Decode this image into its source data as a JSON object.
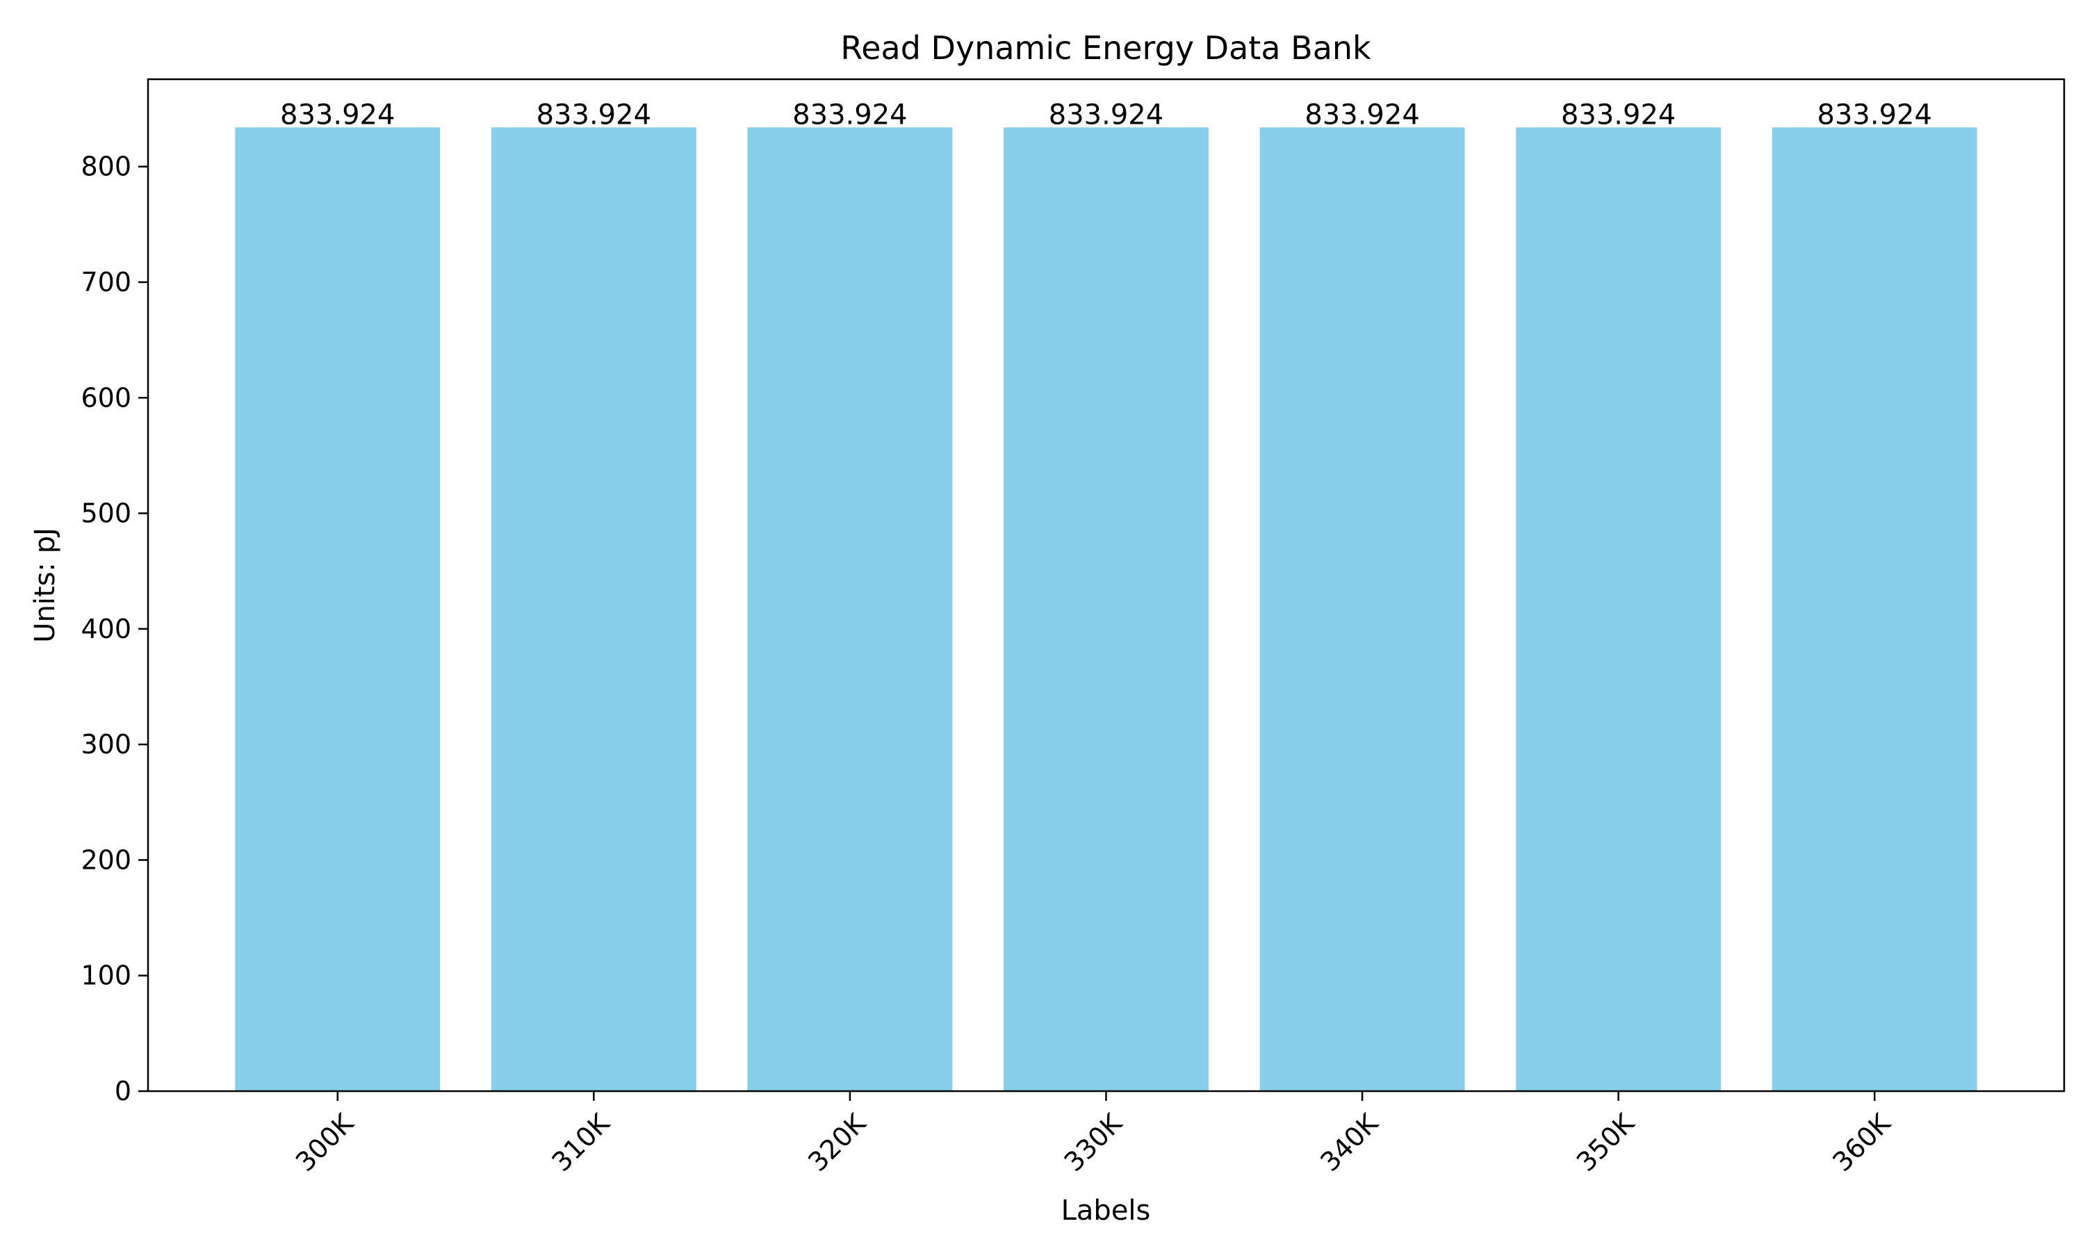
{
  "chart_data": {
    "type": "bar",
    "title": "Read Dynamic Energy Data Bank",
    "xlabel": "Labels",
    "ylabel": "Units: pJ",
    "categories": [
      "300K",
      "310K",
      "320K",
      "330K",
      "340K",
      "350K",
      "360K"
    ],
    "values": [
      833.924,
      833.924,
      833.924,
      833.924,
      833.924,
      833.924,
      833.924
    ],
    "data_labels": [
      "833.924",
      "833.924",
      "833.924",
      "833.924",
      "833.924",
      "833.924",
      "833.924"
    ],
    "ylim": [
      0,
      875.6
    ],
    "yticks": [
      0,
      100,
      200,
      300,
      400,
      500,
      600,
      700,
      800
    ],
    "bar_color": "#87CEEB",
    "grid": false,
    "legend": "none"
  }
}
